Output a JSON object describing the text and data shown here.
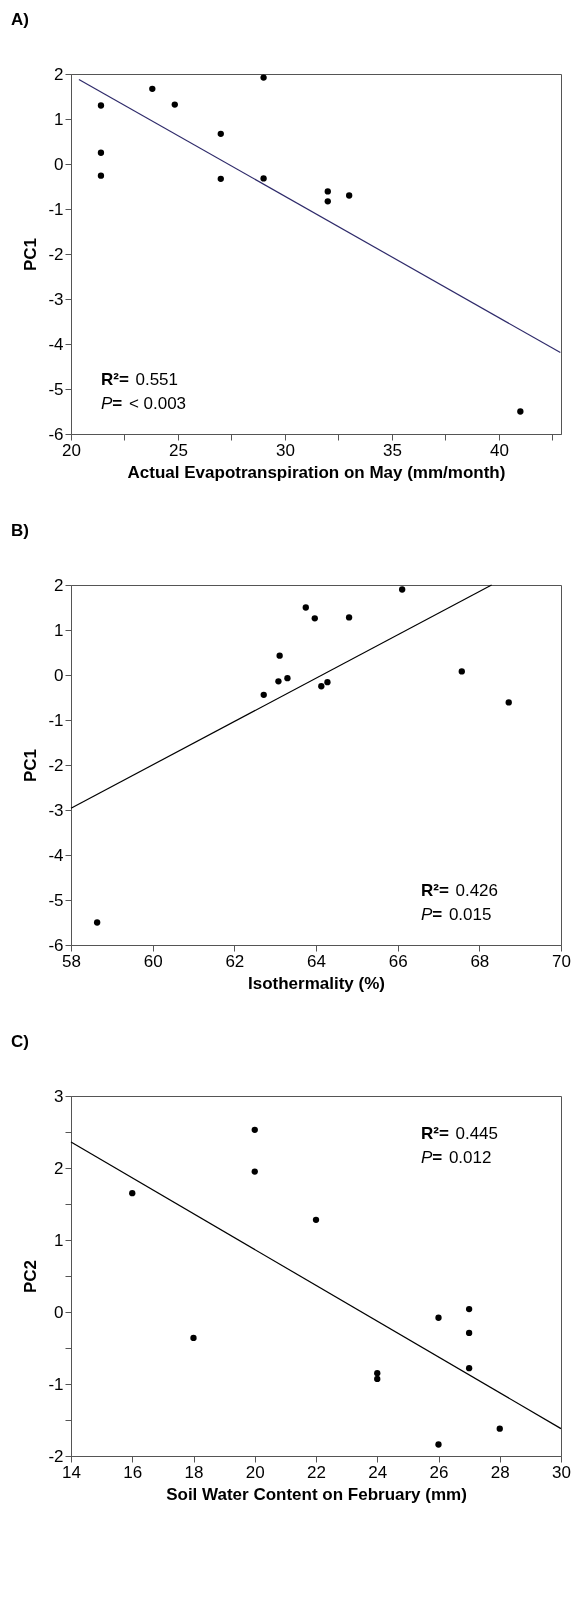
{
  "chart_data": [
    {
      "type": "scatter",
      "title": "A)",
      "xlabel": "Actual  Evapotranspiration on May (mm/month)",
      "ylabel": "PC1",
      "xlim": [
        20,
        42.9
      ],
      "ylim": [
        -6,
        2
      ],
      "xticks": [
        20,
        {
          "value": 22.5,
          "label": null
        },
        25,
        {
          "value": 27.5,
          "label": null
        },
        30,
        {
          "value": 32.5,
          "label": null
        },
        35,
        {
          "value": 37.5,
          "label": null
        },
        40,
        {
          "value": 42.5,
          "label": null
        }
      ],
      "yticks": [
        -6,
        -5,
        -4,
        -3,
        -2,
        -1,
        0,
        1,
        2
      ],
      "series": [
        {
          "marker": "circle",
          "color": "#000000",
          "x": [
            21.4,
            21.4,
            21.4,
            23.8,
            24.85,
            27.0,
            27.0,
            29.0,
            29.0,
            32.0,
            32.0,
            33.0,
            41.0
          ],
          "values": [
            1.3,
            0.25,
            -0.26,
            1.67,
            1.32,
            0.67,
            -0.33,
            1.92,
            -0.32,
            -0.61,
            -0.83,
            -0.7,
            -5.5
          ]
        },
        {
          "type": "line",
          "color": "#2e2a6a",
          "x": [
            20.37,
            42.87
          ],
          "values": [
            1.88,
            -4.19
          ]
        }
      ],
      "annotations": [
        "R²= 0.551",
        "P= < 0.003"
      ]
    },
    {
      "type": "scatter",
      "title": "B)",
      "xlabel": "Isothermality (%)",
      "ylabel": "PC1",
      "xlim": [
        58,
        70
      ],
      "ylim": [
        -6,
        2
      ],
      "xticks": [
        58,
        60,
        62,
        64,
        66,
        68,
        70
      ],
      "yticks": [
        -6,
        -5,
        -4,
        -3,
        -2,
        -1,
        0,
        1,
        2
      ],
      "series": [
        {
          "marker": "circle",
          "color": "#000000",
          "x": [
            58.64,
            62.72,
            63.08,
            63.11,
            63.3,
            63.75,
            63.97,
            64.13,
            64.28,
            64.81,
            66.11,
            67.57,
            68.72
          ],
          "values": [
            -5.5,
            -0.44,
            -0.14,
            0.43,
            -0.07,
            1.5,
            1.26,
            -0.25,
            -0.16,
            1.28,
            1.9,
            0.08,
            -0.61
          ]
        },
        {
          "type": "line",
          "color": "#000000",
          "x": [
            58,
            68.3
          ],
          "values": [
            -2.96,
            2
          ]
        }
      ],
      "annotations": [
        "R²= 0.426",
        "P= 0.015"
      ]
    },
    {
      "type": "scatter",
      "title": "C)",
      "xlabel": "Soil Water Content on February (mm)",
      "ylabel": "PC2",
      "xlim": [
        14,
        30
      ],
      "ylim": [
        -2,
        3
      ],
      "xticks": [
        14,
        16,
        18,
        20,
        22,
        24,
        26,
        28,
        30
      ],
      "yticks": [
        -2,
        {
          "value": -1.5,
          "label": null
        },
        -1,
        {
          "value": -0.5,
          "label": null
        },
        0,
        {
          "value": 0.5,
          "label": null
        },
        1,
        {
          "value": 1.5,
          "label": null
        },
        2,
        {
          "value": 2.5,
          "label": null
        },
        3
      ],
      "series": [
        {
          "marker": "circle",
          "color": "#000000",
          "x": [
            16,
            18,
            20,
            20,
            22,
            24,
            24,
            26,
            26,
            27,
            27,
            27,
            28
          ],
          "values": [
            1.65,
            -0.36,
            2.53,
            1.95,
            1.28,
            -0.85,
            -0.93,
            -0.08,
            -1.84,
            0.04,
            -0.29,
            -0.78,
            -1.62
          ]
        },
        {
          "type": "line",
          "color": "#000000",
          "x": [
            14,
            30
          ],
          "values": [
            2.36,
            -1.62
          ]
        }
      ],
      "annotations": [
        "R²= 0.445",
        "P= 0.012"
      ]
    }
  ]
}
